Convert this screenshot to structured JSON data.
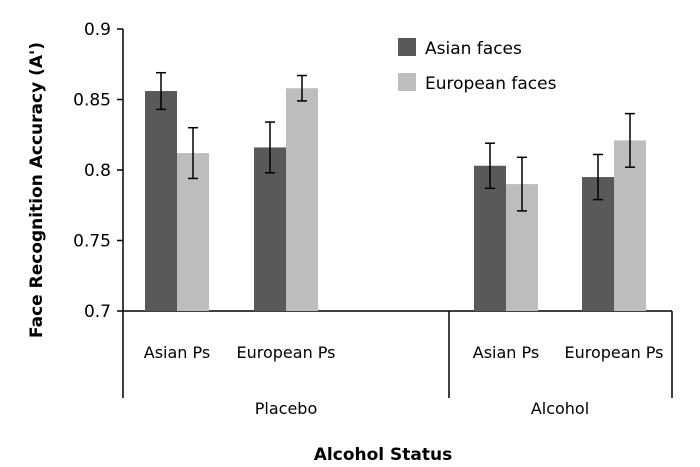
{
  "chart_data": {
    "type": "bar",
    "xlabel": "Alcohol Status",
    "ylabel": "Face Recognition Accuracy (A')",
    "ylim": [
      0.7,
      0.9
    ],
    "yticks": [
      "0.7",
      "0.75",
      "0.8",
      "0.85",
      "0.9"
    ],
    "grid": false,
    "legend_position": "top-right",
    "categories": [
      "Asian Ps",
      "European Ps",
      "Asian Ps",
      "European Ps"
    ],
    "groups": [
      {
        "label": "Placebo",
        "categories": [
          0,
          1
        ]
      },
      {
        "label": "Alcohol",
        "categories": [
          2,
          3
        ]
      }
    ],
    "series": [
      {
        "name": "Asian faces",
        "color": "#595959",
        "values": [
          0.856,
          0.816,
          0.803,
          0.795
        ],
        "errors": [
          0.013,
          0.018,
          0.016,
          0.016
        ]
      },
      {
        "name": "European faces",
        "color": "#bdbdbd",
        "values": [
          0.812,
          0.858,
          0.79,
          0.821
        ],
        "errors": [
          0.018,
          0.009,
          0.019,
          0.019
        ]
      }
    ]
  }
}
